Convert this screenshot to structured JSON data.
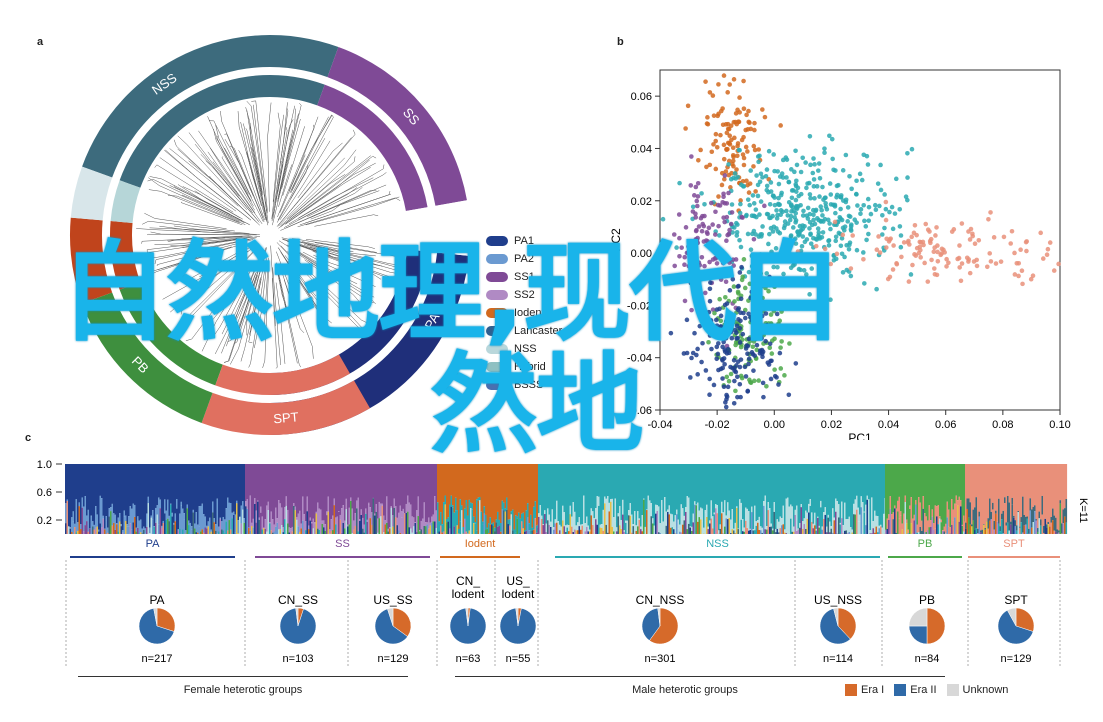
{
  "panels": {
    "a": "a",
    "b": "b",
    "c": "c"
  },
  "colors": {
    "PA": "#1f3e8c",
    "SS": "#7f4a96",
    "Iodent": "#d2691e",
    "NSS": "#2aa9b2",
    "PB": "#4ca84a",
    "SPT": "#e9907a",
    "Lancaster": "#6b9ad1",
    "Unknown": "#c8c8c8",
    "EraI": "#d66a2a",
    "EraII": "#2f6aa8",
    "overlay": "#19b4ea"
  },
  "tree_ring": {
    "labels": {
      "NSS": "NSS",
      "SS": "SS",
      "PA": "PA",
      "PB": "PB",
      "SPT": "SPT",
      "Iodent": "Iodent"
    },
    "legend": [
      "PA1",
      "PA2",
      "SS1",
      "SS2",
      "Iodent",
      "Lancaster",
      "NSS",
      "Hybrid",
      "BSSS"
    ]
  },
  "chart_data": {
    "type": "scatter",
    "title": "",
    "xlabel": "PC1",
    "ylabel": "PC2",
    "xlim": [
      -0.04,
      0.1
    ],
    "ylim": [
      -0.06,
      0.07
    ],
    "xticks": [
      "-0.04",
      "-0.02",
      "0.00",
      "0.02",
      "0.04",
      "0.06",
      "0.08",
      "0.10"
    ],
    "yticks": [
      "0.06",
      "0.04",
      "0.02",
      "0.00",
      "-0.02",
      "-0.04",
      "-0.06"
    ],
    "series": [
      {
        "color": "#d2691e",
        "center": [
          -0.015,
          0.045
        ],
        "spread": [
          0.006,
          0.012
        ],
        "n": 120
      },
      {
        "color": "#2aa9b2",
        "center": [
          0.01,
          0.015
        ],
        "spread": [
          0.015,
          0.012
        ],
        "n": 420
      },
      {
        "color": "#e9907a",
        "center": [
          0.06,
          0.0
        ],
        "spread": [
          0.022,
          0.006
        ],
        "n": 140
      },
      {
        "color": "#7f4a96",
        "center": [
          -0.022,
          0.005
        ],
        "spread": [
          0.006,
          0.012
        ],
        "n": 110
      },
      {
        "color": "#4ca84a",
        "center": [
          -0.008,
          -0.03
        ],
        "spread": [
          0.006,
          0.012
        ],
        "n": 140
      },
      {
        "color": "#1f3e8c",
        "center": [
          -0.014,
          -0.035
        ],
        "spread": [
          0.008,
          0.012
        ],
        "n": 170
      }
    ]
  },
  "panel_c": {
    "k_label": "K=11",
    "yticks": [
      "1.0",
      "0.6",
      "0.2"
    ],
    "ylabel_ticks_extra": "0.2",
    "groups": [
      {
        "label": "PA",
        "color": "#1f3e8c"
      },
      {
        "label": "SS",
        "color": "#7f4a96"
      },
      {
        "label": "Iodent",
        "color": "#d2691e"
      },
      {
        "label": "NSS",
        "color": "#2aa9b2"
      },
      {
        "label": "PB",
        "color": "#4ca84a"
      },
      {
        "label": "SPT",
        "color": "#e9907a"
      }
    ],
    "pies": [
      {
        "name": "PA",
        "n": "n=217",
        "eraI": 0.3,
        "eraII": 0.67,
        "unk": 0.03
      },
      {
        "name": "CN_SS",
        "n": "n=103",
        "eraI": 0.05,
        "eraII": 0.93,
        "unk": 0.02
      },
      {
        "name": "US_SS",
        "n": "n=129",
        "eraI": 0.35,
        "eraII": 0.6,
        "unk": 0.05
      },
      {
        "name": "CN_\nlodent",
        "n": "n=63",
        "eraI": 0.02,
        "eraII": 0.96,
        "unk": 0.02
      },
      {
        "name": "US_\nlodent",
        "n": "n=55",
        "eraI": 0.03,
        "eraII": 0.95,
        "unk": 0.02
      },
      {
        "name": "CN_NSS",
        "n": "n=301",
        "eraI": 0.6,
        "eraII": 0.38,
        "unk": 0.02
      },
      {
        "name": "US_NSS",
        "n": "n=114",
        "eraI": 0.38,
        "eraII": 0.58,
        "unk": 0.04
      },
      {
        "name": "PB",
        "n": "n=84",
        "eraI": 0.5,
        "eraII": 0.25,
        "unk": 0.25
      },
      {
        "name": "SPT",
        "n": "n=129",
        "eraI": 0.3,
        "eraII": 0.62,
        "unk": 0.08
      }
    ],
    "female_label": "Female heterotic groups",
    "male_label": "Male heterotic groups",
    "legend": {
      "era1": "Era I",
      "era2": "Era II",
      "unknown": "Unknown"
    }
  },
  "overlay": {
    "line1": "自然地理,现代自",
    "line2": "然地"
  }
}
